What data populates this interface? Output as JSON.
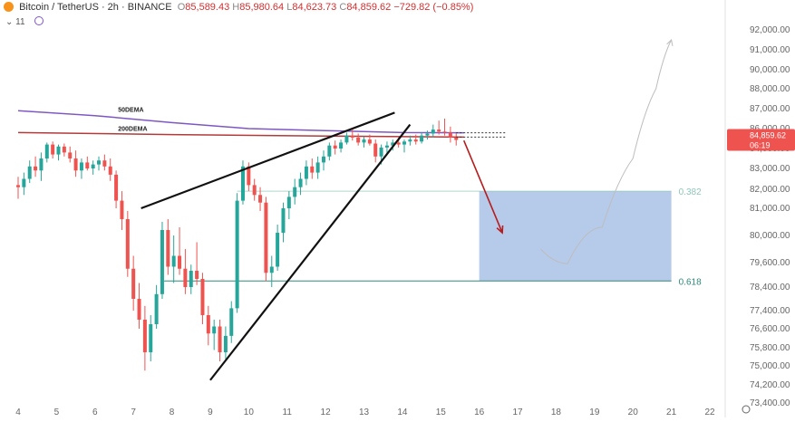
{
  "header": {
    "symbol": "Bitcoin / TetherUS · 2h · BINANCE",
    "o_label": "O",
    "o_value": "85,589.43",
    "h_label": "H",
    "h_value": "85,980.64",
    "l_label": "L",
    "l_value": "84,623.73",
    "c_label": "C",
    "c_value": "84,859.62",
    "change": "−729.82 (−0.85%)",
    "indicator_count": "11",
    "logo_icon": "bitcoin-logo-icon"
  },
  "colors": {
    "up": "#26a69a",
    "down": "#ef5350",
    "ema50": "#7e57c2",
    "ema200": "#b23a3a",
    "fib_box": "#7a9fd8",
    "fib382": "#8ec7b8",
    "fib618": "#2e8b7a",
    "arrow": "#b71c1c"
  },
  "chart_data": {
    "type": "candlestick",
    "title": "Bitcoin / TetherUS · 2h · BINANCE",
    "x_ticks": [
      "4",
      "5",
      "6",
      "7",
      "8",
      "9",
      "10",
      "11",
      "12",
      "13",
      "14",
      "15",
      "16",
      "17",
      "18",
      "19",
      "20",
      "21",
      "22"
    ],
    "y_ticks": [
      "92,000.00",
      "91,000.00",
      "90,000.00",
      "88,000.00",
      "87,000.00",
      "86,000.00",
      "84,000.00",
      "83,000.00",
      "82,000.00",
      "81,000.00",
      "80,000.00",
      "79,600.00",
      "78,400.00",
      "77,400.00",
      "76,600.00",
      "75,800.00",
      "75,000.00",
      "74,200.00",
      "73,400.00"
    ],
    "last_price": "84,859.62",
    "countdown": "06:19",
    "indicators": [
      {
        "name": "50DEMA",
        "values": [
          [
            4,
            86900
          ],
          [
            6,
            86650
          ],
          [
            8,
            86300
          ],
          [
            10,
            86000
          ],
          [
            12,
            85800
          ],
          [
            14,
            85600
          ],
          [
            15.6,
            85580
          ]
        ]
      },
      {
        "name": "200DEMA",
        "values": [
          [
            4,
            85600
          ],
          [
            8,
            85400
          ],
          [
            12,
            85250
          ],
          [
            15.6,
            85150
          ]
        ]
      }
    ],
    "candles": [
      [
        4.0,
        82200,
        82600,
        81500,
        82100
      ],
      [
        4.15,
        82100,
        82800,
        81700,
        82500
      ],
      [
        4.3,
        82500,
        83400,
        82300,
        83100
      ],
      [
        4.45,
        83100,
        83600,
        82600,
        82900
      ],
      [
        4.6,
        82900,
        83800,
        82400,
        83500
      ],
      [
        4.75,
        83500,
        84600,
        83300,
        84400
      ],
      [
        4.9,
        84400,
        84700,
        83500,
        83700
      ],
      [
        5.05,
        83700,
        84400,
        83400,
        84200
      ],
      [
        5.2,
        84200,
        84500,
        83600,
        83800
      ],
      [
        5.35,
        83800,
        84200,
        83300,
        83500
      ],
      [
        5.5,
        83500,
        83900,
        82600,
        82900
      ],
      [
        5.65,
        82900,
        83500,
        82500,
        83300
      ],
      [
        5.8,
        83300,
        83600,
        82900,
        83000
      ],
      [
        5.95,
        83000,
        83400,
        82700,
        83200
      ],
      [
        6.1,
        83200,
        83600,
        82900,
        83400
      ],
      [
        6.25,
        83400,
        83700,
        82900,
        83100
      ],
      [
        6.4,
        83100,
        83500,
        82400,
        82700
      ],
      [
        6.55,
        82700,
        82900,
        81000,
        81400
      ],
      [
        6.7,
        81400,
        81900,
        80200,
        80600
      ],
      [
        6.85,
        80600,
        80900,
        78900,
        79300
      ],
      [
        7.0,
        79300,
        79700,
        77400,
        77900
      ],
      [
        7.15,
        77900,
        78600,
        76600,
        77000
      ],
      [
        7.3,
        77000,
        77600,
        74800,
        75600
      ],
      [
        7.45,
        75600,
        77200,
        75200,
        76800
      ],
      [
        7.6,
        76800,
        78500,
        76600,
        78100
      ],
      [
        7.75,
        78100,
        80500,
        77900,
        80200
      ],
      [
        7.9,
        80200,
        80600,
        79000,
        79400
      ],
      [
        8.05,
        79400,
        80000,
        78600,
        79700
      ],
      [
        8.2,
        79700,
        80300,
        79000,
        79300
      ],
      [
        8.35,
        79300,
        79800,
        78100,
        78400
      ],
      [
        8.5,
        78400,
        79500,
        78100,
        79200
      ],
      [
        8.65,
        79200,
        79900,
        78500,
        78800
      ],
      [
        8.8,
        78800,
        79100,
        76800,
        77200
      ],
      [
        8.95,
        77200,
        77600,
        75900,
        76400
      ],
      [
        9.1,
        76400,
        77000,
        75700,
        76700
      ],
      [
        9.25,
        76700,
        77000,
        75200,
        75600
      ],
      [
        9.4,
        75600,
        76700,
        75300,
        76300
      ],
      [
        9.55,
        76300,
        77800,
        76000,
        77500
      ],
      [
        9.7,
        77500,
        81800,
        77300,
        81400
      ],
      [
        9.85,
        81400,
        83400,
        81200,
        83100
      ],
      [
        10.0,
        83100,
        83300,
        81900,
        82200
      ],
      [
        10.15,
        82200,
        82500,
        81400,
        81700
      ],
      [
        10.3,
        81700,
        82100,
        80900,
        81300
      ],
      [
        10.45,
        81300,
        81600,
        78700,
        79100
      ],
      [
        10.6,
        79100,
        79700,
        78400,
        79400
      ],
      [
        10.75,
        79400,
        80400,
        79200,
        80100
      ],
      [
        10.9,
        80100,
        81300,
        79900,
        81000
      ],
      [
        11.05,
        81000,
        81900,
        80600,
        81600
      ],
      [
        11.2,
        81600,
        82500,
        81200,
        82100
      ],
      [
        11.35,
        82100,
        82800,
        81700,
        82500
      ],
      [
        11.5,
        82500,
        83400,
        82200,
        83100
      ],
      [
        11.65,
        83100,
        83500,
        82500,
        82800
      ],
      [
        11.8,
        82800,
        83600,
        82500,
        83300
      ],
      [
        11.95,
        83300,
        83900,
        82900,
        83600
      ],
      [
        12.1,
        83600,
        84600,
        83400,
        84300
      ],
      [
        12.25,
        84300,
        84800,
        83700,
        84000
      ],
      [
        12.4,
        84000,
        84900,
        83800,
        84600
      ],
      [
        12.55,
        84600,
        85600,
        84400,
        85300
      ],
      [
        12.7,
        85300,
        85900,
        84800,
        85100
      ],
      [
        12.85,
        85100,
        85500,
        84300,
        84600
      ],
      [
        13.0,
        84600,
        85200,
        84100,
        84900
      ],
      [
        13.15,
        84900,
        85400,
        84300,
        84500
      ],
      [
        13.3,
        84500,
        84900,
        83300,
        83600
      ],
      [
        13.45,
        83600,
        84400,
        83200,
        84100
      ],
      [
        13.6,
        84100,
        84700,
        83700,
        84300
      ],
      [
        13.75,
        84300,
        84900,
        83900,
        84600
      ],
      [
        13.9,
        84600,
        85100,
        84100,
        84400
      ],
      [
        14.05,
        84400,
        84900,
        83800,
        84700
      ],
      [
        14.2,
        84700,
        85300,
        84300,
        84900
      ],
      [
        14.35,
        84900,
        85400,
        84400,
        84700
      ],
      [
        14.5,
        84700,
        85600,
        84500,
        85300
      ],
      [
        14.65,
        85300,
        85800,
        84900,
        85500
      ],
      [
        14.8,
        85500,
        86200,
        85100,
        85900
      ],
      [
        14.95,
        85900,
        86400,
        85400,
        85700
      ],
      [
        15.1,
        85700,
        86500,
        85300,
        85600
      ],
      [
        15.25,
        85600,
        86100,
        84600,
        85100
      ],
      [
        15.4,
        85100,
        85500,
        84300,
        84860
      ]
    ],
    "drawings": {
      "wedge_upper": [
        [
          7.2,
          81000
        ],
        [
          13.8,
          86800
        ]
      ],
      "wedge_lower": [
        [
          9.0,
          74400
        ],
        [
          14.2,
          86200
        ]
      ],
      "resistance_upper": [
        [
          15.4,
          85580
        ],
        [
          16.7,
          85580
        ]
      ],
      "resistance_lower": [
        [
          15.4,
          85150
        ],
        [
          16.7,
          85150
        ]
      ],
      "projection_arrow": [
        [
          15.6,
          84800
        ],
        [
          16.6,
          80100
        ]
      ],
      "projection_curve": [
        [
          17.6,
          79800
        ],
        [
          18.3,
          79550
        ],
        [
          19.2,
          80300
        ],
        [
          20.0,
          83500
        ],
        [
          20.6,
          88000
        ],
        [
          21.0,
          91500
        ]
      ]
    },
    "fib_zone": {
      "levels": [
        {
          "label": "0.382",
          "price": 81900
        },
        {
          "label": "0.618",
          "price": 78700
        }
      ],
      "x_start": 16.0,
      "x_end": 21.0
    },
    "grid": false,
    "legend": "none"
  }
}
